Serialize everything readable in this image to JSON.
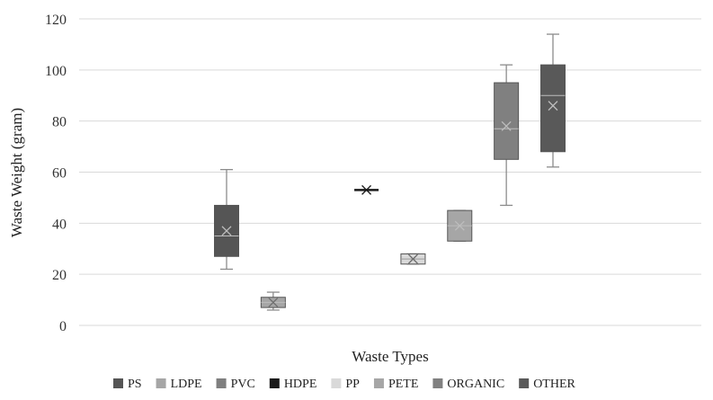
{
  "chart_data": {
    "type": "box",
    "title": "",
    "xlabel": "Waste Types",
    "ylabel": "Waste Weight (gram)",
    "ylim": [
      0,
      120
    ],
    "yticks": [
      0,
      20,
      40,
      60,
      80,
      100,
      120
    ],
    "grid": "horizontal",
    "legend_position": "bottom",
    "series": [
      {
        "name": "PS",
        "color": "#555555",
        "min": 22,
        "q1": 27,
        "median": 35,
        "q3": 47,
        "max": 61,
        "mean": 37
      },
      {
        "name": "LDPE",
        "color": "#a6a6a6",
        "min": 6,
        "q1": 7,
        "median": 9,
        "q3": 11,
        "max": 13,
        "mean": 9
      },
      {
        "name": "PVC",
        "color": "#7f7f7f",
        "min": null,
        "q1": null,
        "median": null,
        "q3": null,
        "max": null,
        "mean": null
      },
      {
        "name": "HDPE",
        "color": "#1a1a1a",
        "min": 53,
        "q1": 53,
        "median": 53,
        "q3": 53,
        "max": 53,
        "mean": 53
      },
      {
        "name": "PP",
        "color": "#d9d9d9",
        "min": 24,
        "q1": 24,
        "median": 26,
        "q3": 28,
        "max": 28,
        "mean": 26
      },
      {
        "name": "PETE",
        "color": "#a6a6a6",
        "min": 33,
        "q1": 33,
        "median": 39,
        "q3": 45,
        "max": 45,
        "mean": 39
      },
      {
        "name": "ORGANIC",
        "color": "#808080",
        "min": 47,
        "q1": 65,
        "median": 77,
        "q3": 95,
        "max": 102,
        "mean": 78
      },
      {
        "name": "OTHER",
        "color": "#595959",
        "min": 62,
        "q1": 68,
        "median": 90,
        "q3": 102,
        "max": 114,
        "mean": 86
      }
    ]
  }
}
